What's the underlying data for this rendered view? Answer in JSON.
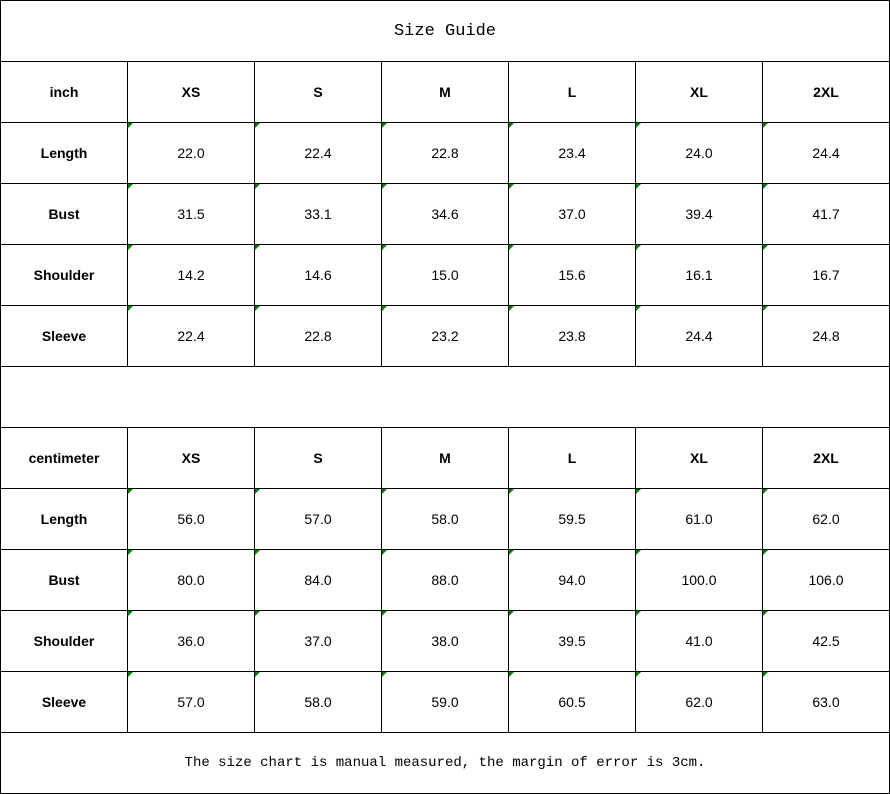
{
  "title": "Size Guide",
  "tables": [
    {
      "unit": "inch",
      "sizes": [
        "XS",
        "S",
        "M",
        "L",
        "XL",
        "2XL"
      ],
      "rows": [
        {
          "label": "Length",
          "values": [
            "22.0",
            "22.4",
            "22.8",
            "23.4",
            "24.0",
            "24.4"
          ]
        },
        {
          "label": "Bust",
          "values": [
            "31.5",
            "33.1",
            "34.6",
            "37.0",
            "39.4",
            "41.7"
          ]
        },
        {
          "label": "Shoulder",
          "values": [
            "14.2",
            "14.6",
            "15.0",
            "15.6",
            "16.1",
            "16.7"
          ]
        },
        {
          "label": "Sleeve",
          "values": [
            "22.4",
            "22.8",
            "23.2",
            "23.8",
            "24.4",
            "24.8"
          ]
        }
      ]
    },
    {
      "unit": "centimeter",
      "sizes": [
        "XS",
        "S",
        "M",
        "L",
        "XL",
        "2XL"
      ],
      "rows": [
        {
          "label": "Length",
          "values": [
            "56.0",
            "57.0",
            "58.0",
            "59.5",
            "61.0",
            "62.0"
          ]
        },
        {
          "label": "Bust",
          "values": [
            "80.0",
            "84.0",
            "88.0",
            "94.0",
            "100.0",
            "106.0"
          ]
        },
        {
          "label": "Shoulder",
          "values": [
            "36.0",
            "37.0",
            "38.0",
            "39.5",
            "41.0",
            "42.5"
          ]
        },
        {
          "label": "Sleeve",
          "values": [
            "57.0",
            "58.0",
            "59.0",
            "60.5",
            "62.0",
            "63.0"
          ]
        }
      ]
    }
  ],
  "note": "The size chart is manual measured, the margin of error is 3cm.",
  "colors": {
    "cell_marker": "#008000",
    "border": "#000000"
  }
}
